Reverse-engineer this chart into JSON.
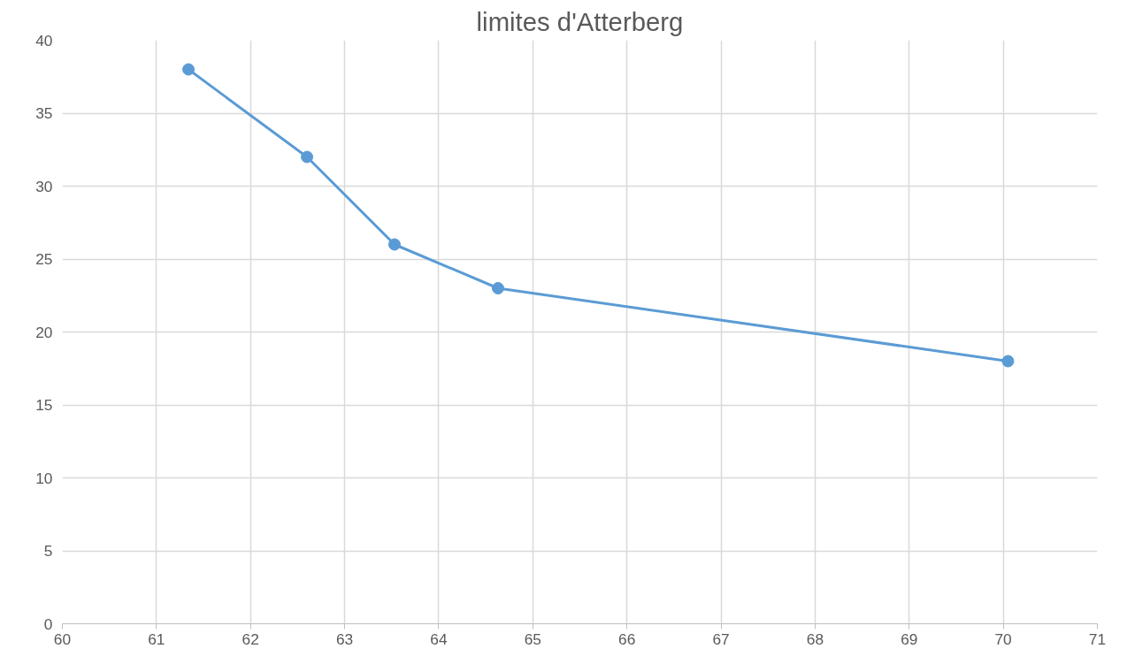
{
  "chart_data": {
    "type": "line",
    "title": "limites d'Atterberg",
    "x": [
      61.34,
      62.6,
      63.53,
      64.63,
      70.05
    ],
    "series": [
      {
        "color": "#5b9bd5",
        "values": [
          38,
          32,
          26,
          23,
          18
        ]
      }
    ],
    "xlim": [
      60,
      71
    ],
    "xticks": [
      60,
      61,
      62,
      63,
      64,
      65,
      66,
      67,
      68,
      69,
      70,
      71
    ],
    "ylim": [
      0,
      40
    ],
    "yticks": [
      0,
      5,
      10,
      15,
      20,
      25,
      30,
      35,
      40
    ],
    "grid": true,
    "marker": "circle",
    "line_style": "solid"
  }
}
